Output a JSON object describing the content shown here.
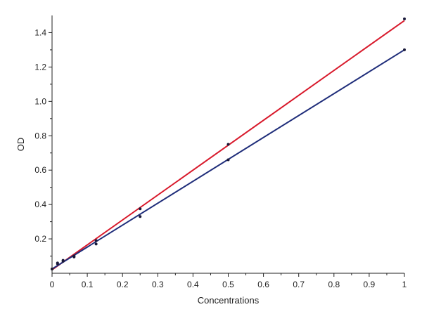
{
  "chart_data": {
    "type": "scatter",
    "title": "",
    "xlabel": "Concentrations",
    "ylabel": "OD",
    "xlim": [
      0,
      1
    ],
    "ylim": [
      0,
      1.5
    ],
    "x_ticks": [
      {
        "value": 0,
        "label": "0"
      },
      {
        "value": 0.1,
        "label": "0.1"
      },
      {
        "value": 0.2,
        "label": "0.2"
      },
      {
        "value": 0.3,
        "label": "0.3"
      },
      {
        "value": 0.4,
        "label": "0.4"
      },
      {
        "value": 0.5,
        "label": "0.5"
      },
      {
        "value": 0.6,
        "label": "0.6"
      },
      {
        "value": 0.7,
        "label": "0.7"
      },
      {
        "value": 0.8,
        "label": "0.8"
      },
      {
        "value": 0.9,
        "label": "0.9"
      },
      {
        "value": 1,
        "label": "1"
      }
    ],
    "y_ticks": [
      {
        "value": 0.2,
        "label": "0.2"
      },
      {
        "value": 0.4,
        "label": "0.4"
      },
      {
        "value": 0.6,
        "label": "0.6"
      },
      {
        "value": 0.8,
        "label": "0.8"
      },
      {
        "value": 1.0,
        "label": "1.0"
      },
      {
        "value": 1.2,
        "label": "1.2"
      },
      {
        "value": 1.4,
        "label": "1.4"
      }
    ],
    "grid": false,
    "legend": "none",
    "series": [
      {
        "color": "#d8192b",
        "points": [
          {
            "x": 0,
            "y": 0.025
          },
          {
            "x": 0.0156,
            "y": 0.06
          },
          {
            "x": 0.03125,
            "y": 0.075
          },
          {
            "x": 0.0625,
            "y": 0.1
          },
          {
            "x": 0.125,
            "y": 0.19
          },
          {
            "x": 0.25,
            "y": 0.375
          },
          {
            "x": 0.5,
            "y": 0.75
          },
          {
            "x": 1,
            "y": 1.48
          }
        ],
        "fit": {
          "x0": 0,
          "y0": 0.02,
          "x1": 1,
          "y1": 1.47
        }
      },
      {
        "color": "#1f2d7a",
        "points": [
          {
            "x": 0,
            "y": 0.025
          },
          {
            "x": 0.0156,
            "y": 0.055
          },
          {
            "x": 0.03125,
            "y": 0.07
          },
          {
            "x": 0.0625,
            "y": 0.095
          },
          {
            "x": 0.125,
            "y": 0.17
          },
          {
            "x": 0.25,
            "y": 0.33
          },
          {
            "x": 0.5,
            "y": 0.66
          },
          {
            "x": 1,
            "y": 1.3
          }
        ],
        "fit": {
          "x0": 0,
          "y0": 0.025,
          "x1": 1,
          "y1": 1.3
        }
      }
    ]
  }
}
